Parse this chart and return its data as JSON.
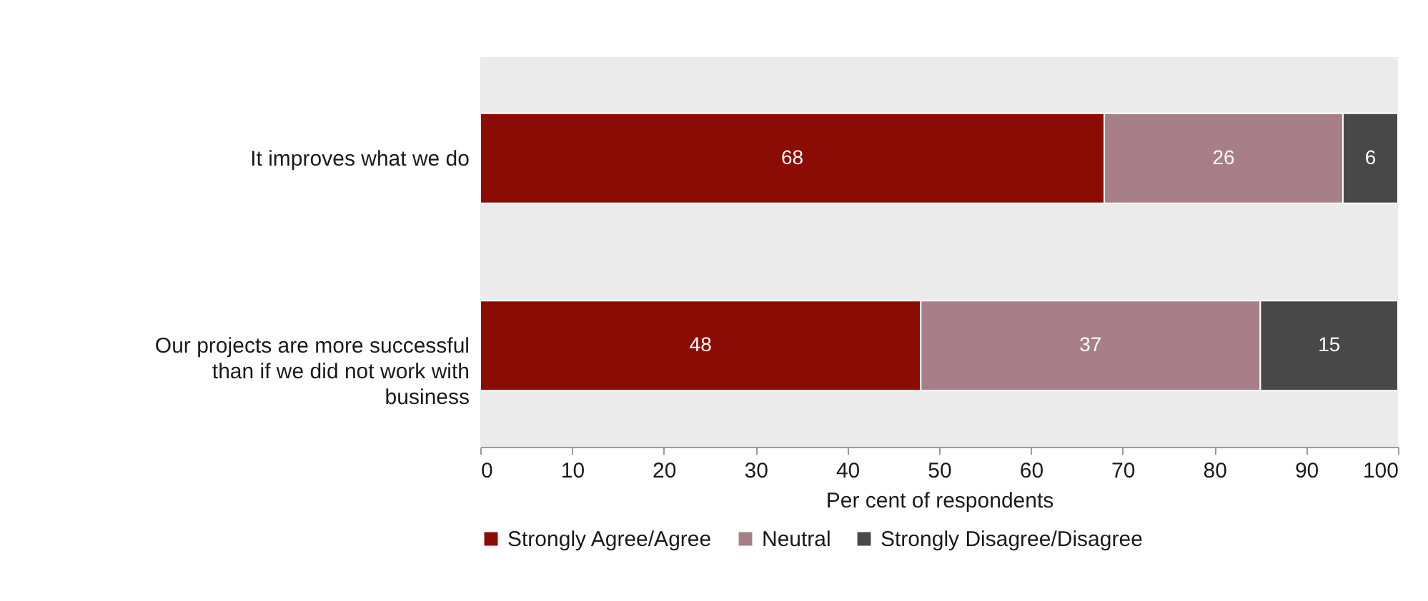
{
  "chart_data": {
    "type": "bar",
    "orientation": "horizontal",
    "stacked": true,
    "categories": [
      "It improves what we do",
      "Our projects are more successful than if we did not work with business"
    ],
    "series": [
      {
        "name": "Strongly Agree/Agree",
        "color": "#8b0c04",
        "values": [
          68,
          48
        ]
      },
      {
        "name": "Neutral",
        "color": "#a87f88",
        "values": [
          26,
          37
        ]
      },
      {
        "name": "Strongly Disagree/Disagree",
        "color": "#484848",
        "values": [
          6,
          15
        ]
      }
    ],
    "xlim": [
      0,
      100
    ],
    "xticks": [
      0,
      10,
      20,
      30,
      40,
      50,
      60,
      70,
      80,
      90,
      100
    ],
    "xlabel": "Per cent of respondents",
    "data_labels": true,
    "grid": false,
    "legend": "bottom"
  }
}
